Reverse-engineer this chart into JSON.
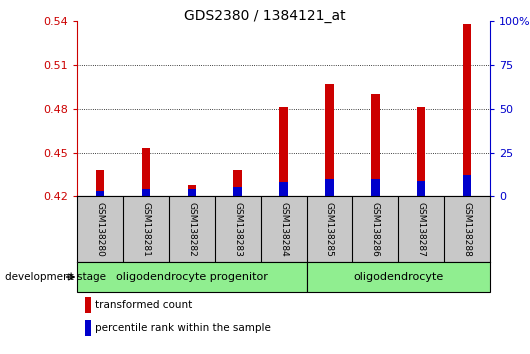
{
  "title": "GDS2380 / 1384121_at",
  "samples": [
    "GSM138280",
    "GSM138281",
    "GSM138282",
    "GSM138283",
    "GSM138284",
    "GSM138285",
    "GSM138286",
    "GSM138287",
    "GSM138288"
  ],
  "transformed_count": [
    0.438,
    0.453,
    0.428,
    0.438,
    0.481,
    0.497,
    0.49,
    0.481,
    0.538
  ],
  "percentile_rank": [
    3.0,
    4.5,
    4.0,
    5.5,
    8.0,
    10.0,
    10.0,
    9.0,
    12.0
  ],
  "ylim_left": [
    0.42,
    0.54
  ],
  "ylim_right": [
    0,
    100
  ],
  "yticks_left": [
    0.42,
    0.45,
    0.48,
    0.51,
    0.54
  ],
  "yticks_right": [
    0,
    25,
    50,
    75,
    100
  ],
  "groups": [
    {
      "label": "oligodendrocyte progenitor",
      "start": 0,
      "end": 4
    },
    {
      "label": "oligodendrocyte",
      "start": 5,
      "end": 8
    }
  ],
  "bar_width": 0.18,
  "red_color": "#CC0000",
  "blue_color": "#0000CC",
  "left_axis_color": "#CC0000",
  "right_axis_color": "#0000CC",
  "tick_label_area_color": "#C8C8C8",
  "group_area_color": "#90EE90",
  "base_value": 0.42,
  "legend_labels": [
    "transformed count",
    "percentile rank within the sample"
  ],
  "dev_stage_label": "development stage"
}
